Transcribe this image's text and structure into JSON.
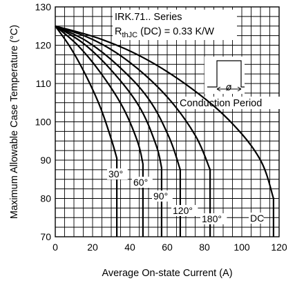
{
  "chart_data": {
    "type": "line",
    "xlabel": "Average On-state Current (A)",
    "ylabel": "Maximum Allowable Case Temperature (°C)",
    "xlim": [
      0,
      120
    ],
    "ylim": [
      70,
      130
    ],
    "x_ticks": [
      "0",
      "20",
      "40",
      "60",
      "80",
      "100",
      "120"
    ],
    "y_ticks": [
      "70",
      "80",
      "90",
      "100",
      "110",
      "120",
      "130"
    ],
    "grid": true,
    "annotation": {
      "line1": "IRK.71.. Series",
      "rth_main": "R",
      "rth_sub": "thJC",
      "rth_rest": " (DC) = 0.33 K/W",
      "phi": "ø",
      "conduction_label": "Conduction Period"
    },
    "series": [
      {
        "name": "30°",
        "x": [
          0,
          8,
          16,
          24,
          30,
          33,
          33
        ],
        "y": [
          125,
          119.5,
          112.5,
          104,
          95.5,
          90.5,
          70
        ]
      },
      {
        "name": "60°",
        "x": [
          0,
          12,
          24,
          36,
          44,
          47,
          47
        ],
        "y": [
          125,
          120,
          113,
          104,
          95,
          89,
          70
        ]
      },
      {
        "name": "90°",
        "x": [
          0,
          15,
          30,
          45,
          54,
          57,
          57
        ],
        "y": [
          125,
          120.5,
          113.5,
          104,
          94,
          88,
          70
        ]
      },
      {
        "name": "120°",
        "x": [
          0,
          17,
          34,
          50,
          61,
          67,
          67
        ],
        "y": [
          125,
          121,
          114.5,
          106,
          96,
          87.5,
          70
        ]
      },
      {
        "name": "180°",
        "x": [
          0,
          20,
          40,
          60,
          75,
          83,
          83
        ],
        "y": [
          125,
          121.5,
          115.5,
          106.5,
          96.5,
          87.5,
          70
        ]
      },
      {
        "name": "DC",
        "x": [
          0,
          25,
          50,
          75,
          95,
          110,
          117,
          117
        ],
        "y": [
          125,
          121.5,
          116,
          108,
          99.5,
          90,
          80,
          70
        ]
      }
    ],
    "colors": {
      "line": "#000000",
      "grid": "#000000",
      "background": "#ffffff"
    }
  }
}
